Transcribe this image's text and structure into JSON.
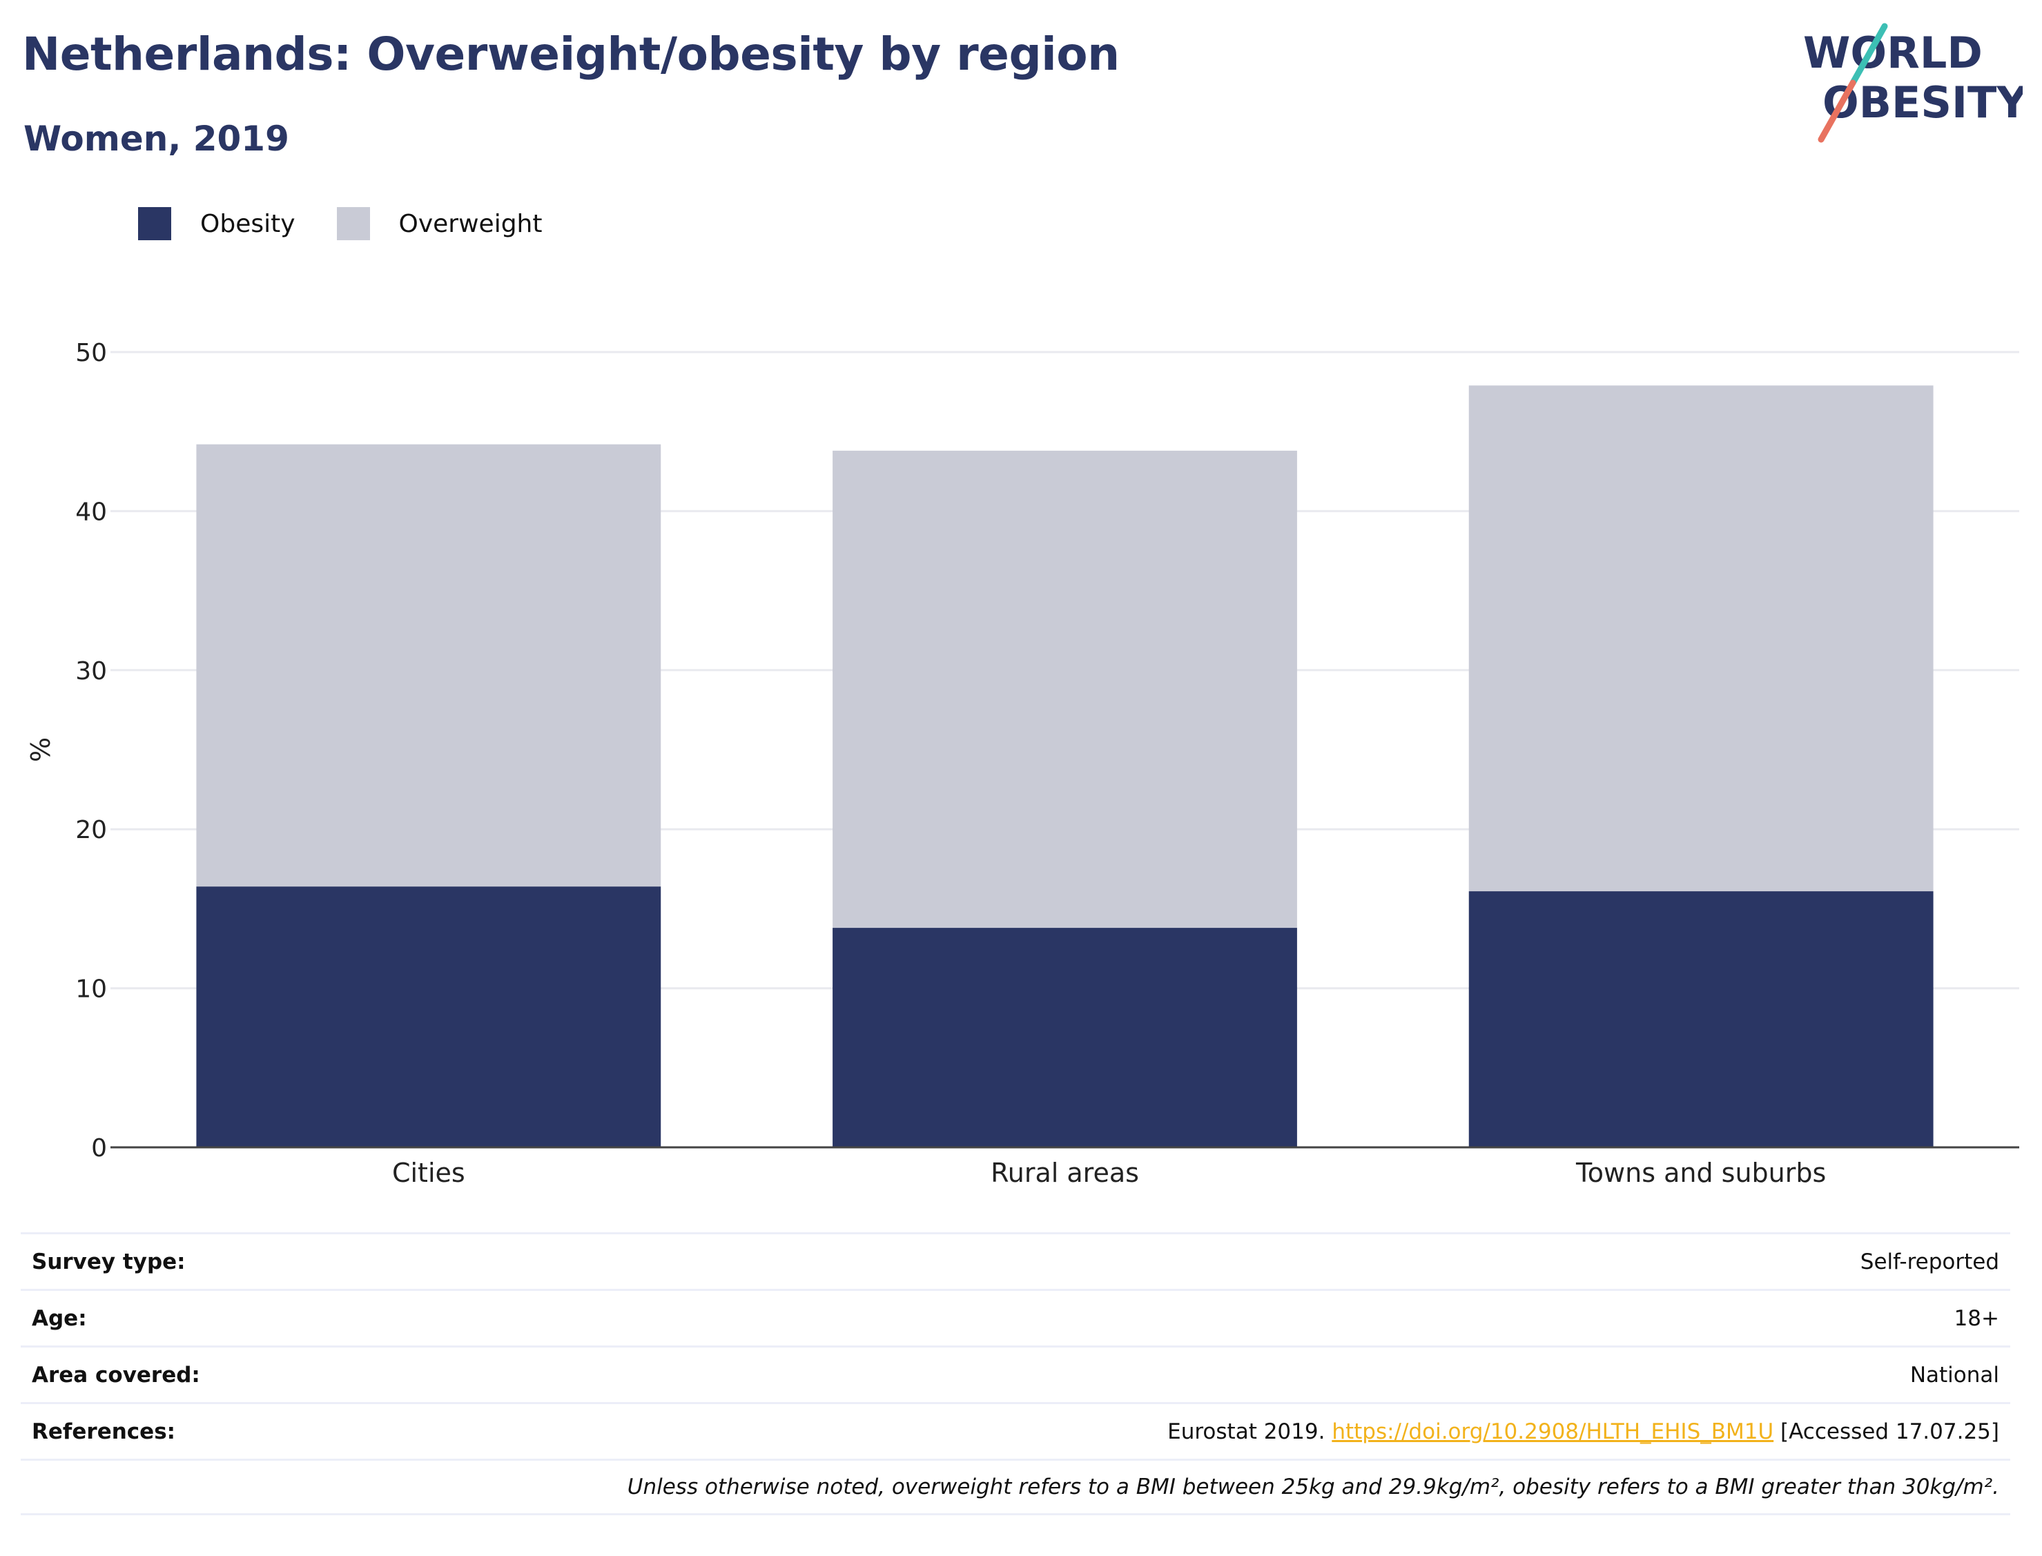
{
  "header": {
    "title": "Netherlands: Overweight/obesity by region",
    "subtitle": "Women, 2019"
  },
  "logo": {
    "line1": "WORLD",
    "line2": "OBESITY"
  },
  "legend": [
    {
      "label": "Obesity",
      "color": "#2a3664"
    },
    {
      "label": "Overweight",
      "color": "#c9cbd6"
    }
  ],
  "chart_data": {
    "type": "bar",
    "stacked": true,
    "categories": [
      "Cities",
      "Rural areas",
      "Towns and suburbs"
    ],
    "series": [
      {
        "name": "Obesity",
        "color": "#2a3664",
        "values": [
          16.4,
          13.8,
          16.1
        ]
      },
      {
        "name": "Overweight",
        "color": "#c9cbd6",
        "values": [
          27.8,
          30.0,
          31.8
        ]
      }
    ],
    "ylabel": "%",
    "ylim": [
      0,
      50
    ],
    "yticks": [
      0,
      10,
      20,
      30,
      40,
      50
    ],
    "grid": true
  },
  "info": {
    "rows": [
      {
        "label": "Survey type:",
        "value": "Self-reported"
      },
      {
        "label": "Age:",
        "value": "18+"
      },
      {
        "label": "Area covered:",
        "value": "National"
      }
    ],
    "references": {
      "label": "References:",
      "prefix": "Eurostat 2019.",
      "link": "https://doi.org/10.2908/HLTH_EHIS_BM1U",
      "suffix": "[Accessed 17.07.25]"
    },
    "note": "Unless otherwise noted, overweight refers to a BMI between 25kg and 29.9kg/m², obesity refers to a BMI greater than 30kg/m²."
  }
}
